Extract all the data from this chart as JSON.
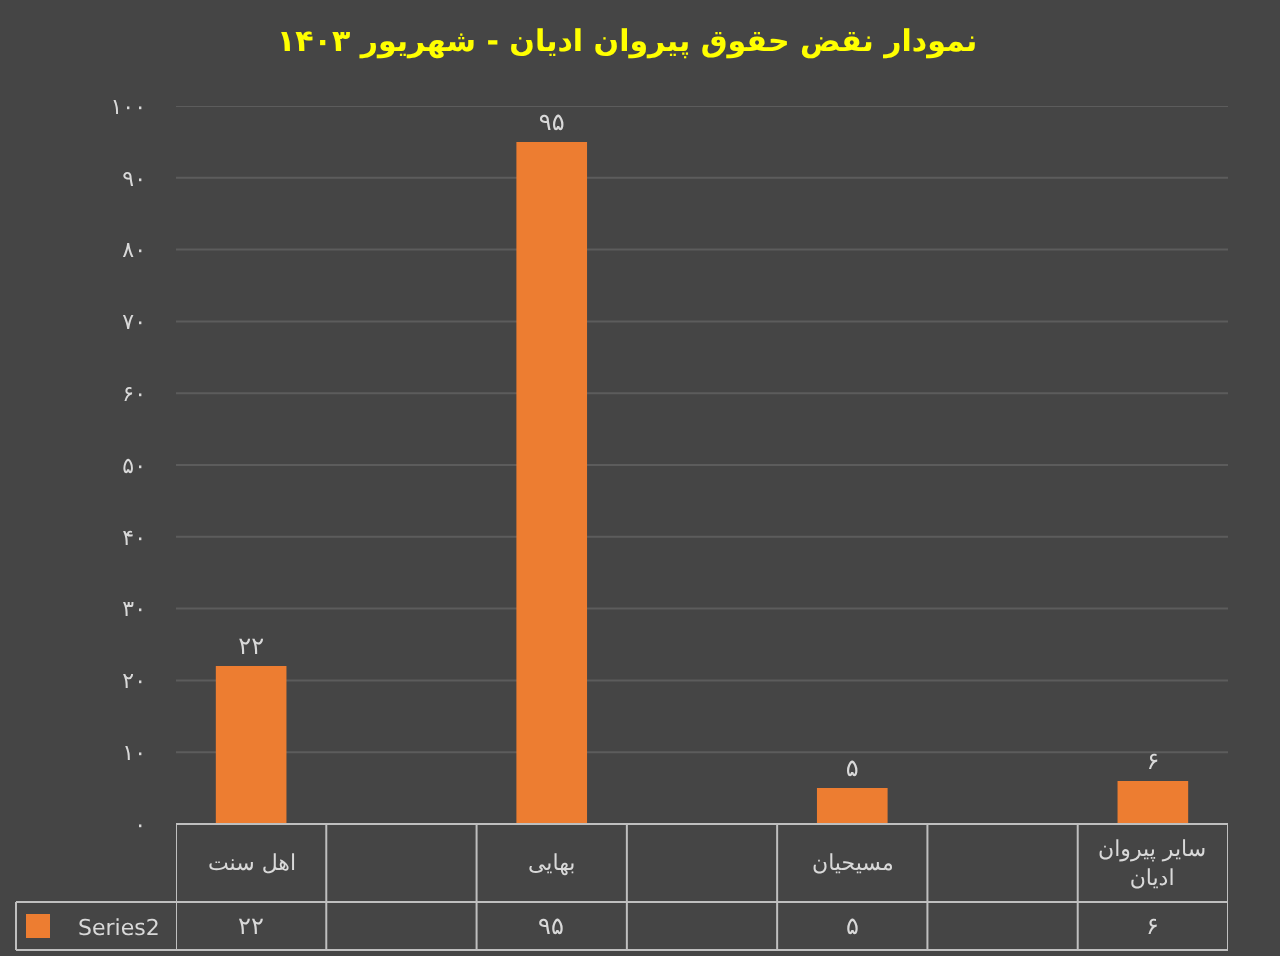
{
  "chart_data": {
    "type": "bar",
    "title": "نمودار نقض حقوق پیروان ادیان - شهریور ۱۴۰۳",
    "categories": [
      "اهل سنت",
      null,
      "بهایی",
      null,
      "مسیحیان",
      null,
      "سایر پیروان ادیان"
    ],
    "series": [
      {
        "name": "Series2",
        "color": "#ed7d31",
        "values": [
          22,
          null,
          95,
          null,
          5,
          null,
          6
        ],
        "value_labels": [
          "۲۲",
          null,
          "۹۵",
          null,
          "۵",
          null,
          "۶"
        ]
      }
    ],
    "ylim": [
      0,
      100
    ],
    "yticks": [
      {
        "value": 0,
        "label": "۰"
      },
      {
        "value": 10,
        "label": "۱۰"
      },
      {
        "value": 20,
        "label": "۲۰"
      },
      {
        "value": 30,
        "label": "۳۰"
      },
      {
        "value": 40,
        "label": "۴۰"
      },
      {
        "value": 50,
        "label": "۵۰"
      },
      {
        "value": 60,
        "label": "۶۰"
      },
      {
        "value": 70,
        "label": "۷۰"
      },
      {
        "value": 80,
        "label": "۸۰"
      },
      {
        "value": 90,
        "label": "۹۰"
      },
      {
        "value": 100,
        "label": "۱۰۰"
      }
    ],
    "grid": "y",
    "legend": "bottom left"
  }
}
